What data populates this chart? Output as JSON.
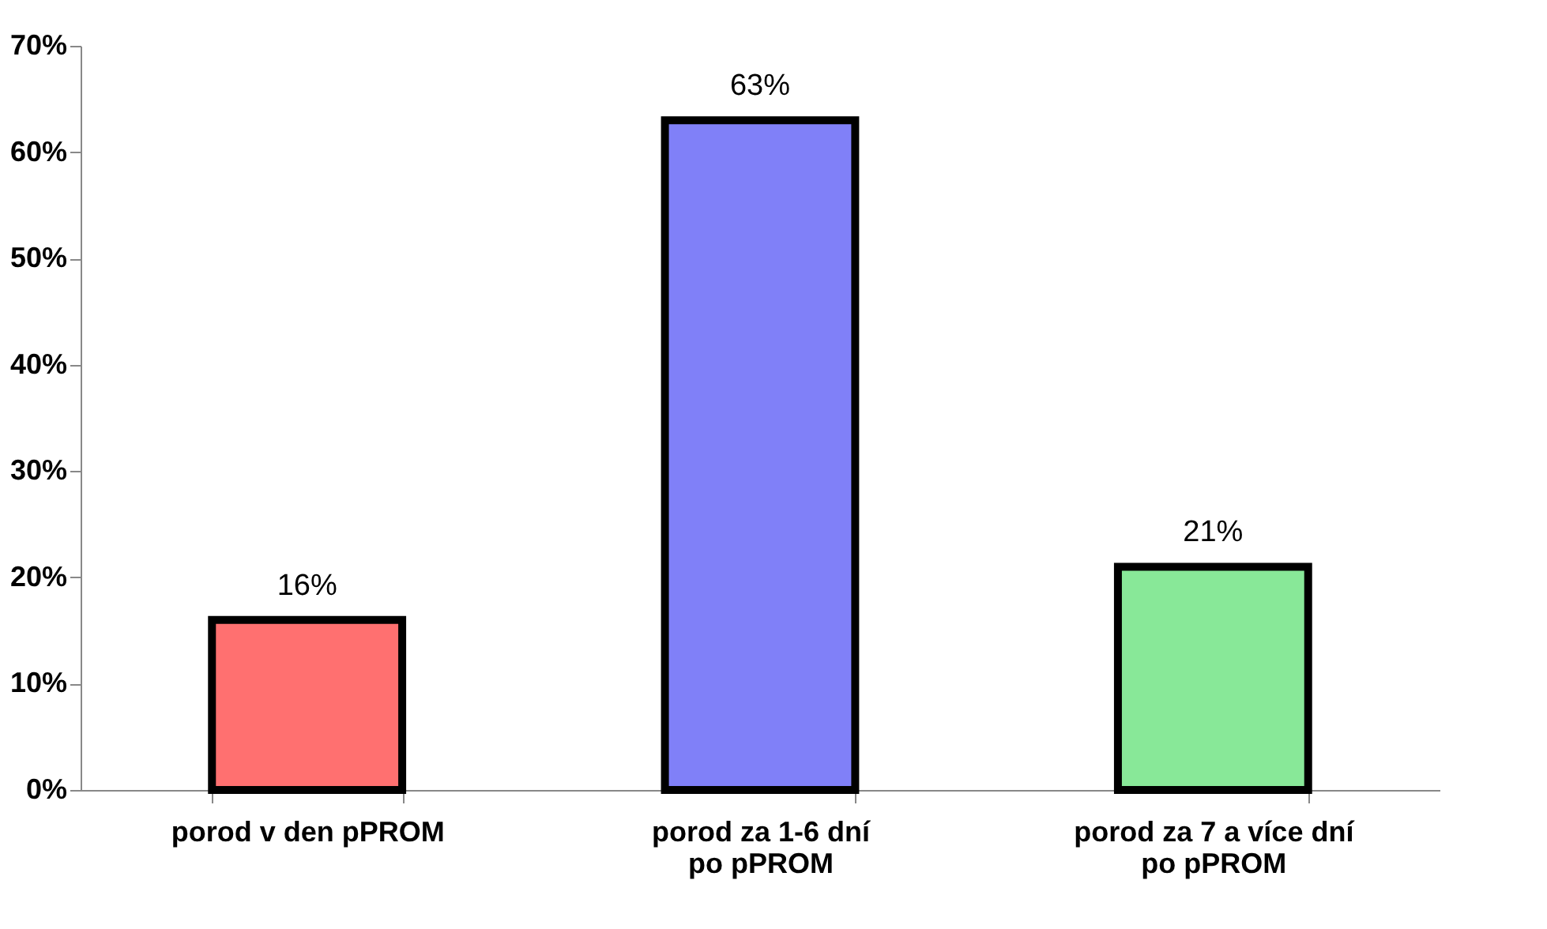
{
  "chart_data": {
    "type": "bar",
    "categories": [
      "porod v den pPROM",
      "porod za 1-6 dní\npo pPROM",
      "porod za 7 a více dní\npo pPROM"
    ],
    "values": [
      16,
      63,
      21
    ],
    "colors": [
      "#ff7070",
      "#8080f8",
      "#88e898"
    ],
    "value_labels": [
      "16%",
      "63%",
      "21%"
    ],
    "ylim": [
      0,
      70
    ],
    "yticks": [
      {
        "value": 0,
        "label": "0%"
      },
      {
        "value": 10,
        "label": "10%"
      },
      {
        "value": 20,
        "label": "20%"
      },
      {
        "value": 30,
        "label": "30%"
      },
      {
        "value": 40,
        "label": "40%"
      },
      {
        "value": 50,
        "label": "50%"
      },
      {
        "value": 60,
        "label": "60%"
      },
      {
        "value": 70,
        "label": "70%"
      }
    ],
    "grid": false
  }
}
